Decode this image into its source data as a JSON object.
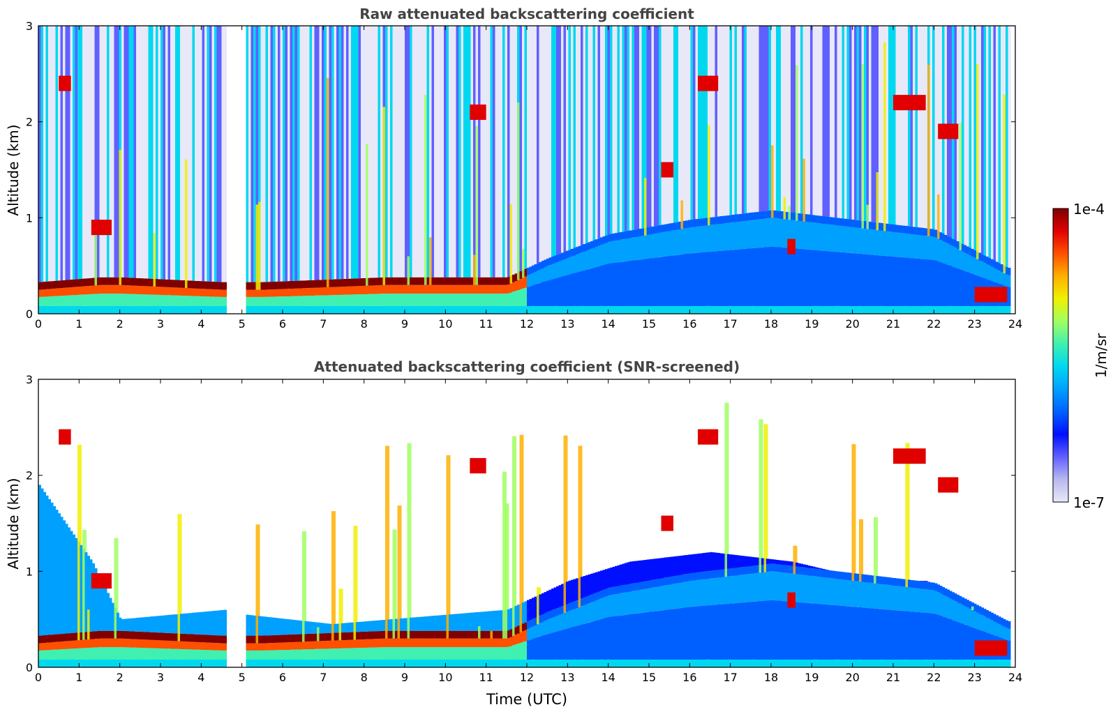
{
  "chart_data": [
    {
      "type": "heatmap",
      "title": "Raw attenuated backscattering coefficient",
      "xlabel": "",
      "ylabel": "Altitude (km)",
      "xlim": [
        0,
        24
      ],
      "ylim": [
        0,
        3
      ],
      "xticks": [
        "0",
        "1",
        "2",
        "3",
        "4",
        "5",
        "6",
        "7",
        "8",
        "9",
        "10",
        "11",
        "12",
        "13",
        "14",
        "15",
        "16",
        "17",
        "18",
        "19",
        "20",
        "21",
        "22",
        "23",
        "24"
      ],
      "yticks": [
        "0",
        "1",
        "2",
        "3"
      ],
      "data_gap_hours": [
        4.6,
        5.05
      ],
      "boundary_layer": [
        {
          "t": 0.0,
          "h": 0.25
        },
        {
          "t": 1.5,
          "h": 0.3
        },
        {
          "t": 2.0,
          "h": 0.3
        },
        {
          "t": 4.5,
          "h": 0.25
        },
        {
          "t": 5.5,
          "h": 0.25
        },
        {
          "t": 8.5,
          "h": 0.3
        },
        {
          "t": 11.5,
          "h": 0.3
        },
        {
          "t": 12.5,
          "h": 0.5
        },
        {
          "t": 14.0,
          "h": 0.75
        },
        {
          "t": 16.0,
          "h": 0.9
        },
        {
          "t": 18.0,
          "h": 1.0
        },
        {
          "t": 20.0,
          "h": 0.9
        },
        {
          "t": 22.0,
          "h": 0.8
        },
        {
          "t": 23.8,
          "h": 0.4
        }
      ],
      "cloud_layers": [
        {
          "t0": 0.5,
          "t1": 0.8,
          "alt": 2.4
        },
        {
          "t0": 1.3,
          "t1": 1.8,
          "alt": 0.9
        },
        {
          "t0": 10.6,
          "t1": 11.0,
          "alt": 2.1
        },
        {
          "t0": 15.3,
          "t1": 15.6,
          "alt": 1.5
        },
        {
          "t0": 16.2,
          "t1": 16.7,
          "alt": 2.4
        },
        {
          "t0": 18.4,
          "t1": 18.6,
          "alt": 0.7
        },
        {
          "t0": 21.0,
          "t1": 21.8,
          "alt": 2.2
        },
        {
          "t0": 22.1,
          "t1": 22.6,
          "alt": 1.9
        },
        {
          "t0": 23.0,
          "t1": 23.8,
          "alt": 0.2
        }
      ]
    },
    {
      "type": "heatmap",
      "title": "Attenuated backscattering coefficient (SNR-screened)",
      "xlabel": "Time (UTC)",
      "ylabel": "Altitude (km)",
      "xlim": [
        0,
        24
      ],
      "ylim": [
        0,
        3
      ],
      "xticks": [
        "0",
        "1",
        "2",
        "3",
        "4",
        "5",
        "6",
        "7",
        "8",
        "9",
        "10",
        "11",
        "12",
        "13",
        "14",
        "15",
        "16",
        "17",
        "18",
        "19",
        "20",
        "21",
        "22",
        "23",
        "24"
      ],
      "yticks": [
        "0",
        "1",
        "2",
        "3"
      ],
      "data_gap_hours": [
        4.6,
        5.05
      ],
      "valid_top": [
        {
          "t": 0.0,
          "h": 1.9
        },
        {
          "t": 1.3,
          "h": 1.1
        },
        {
          "t": 2.0,
          "h": 0.5
        },
        {
          "t": 4.6,
          "h": 0.6
        },
        {
          "t": 5.05,
          "h": 0.55
        },
        {
          "t": 7.2,
          "h": 0.45
        },
        {
          "t": 11.5,
          "h": 0.6
        },
        {
          "t": 13.0,
          "h": 0.9
        },
        {
          "t": 14.5,
          "h": 1.1
        },
        {
          "t": 16.5,
          "h": 1.2
        },
        {
          "t": 18.5,
          "h": 1.1
        },
        {
          "t": 20.5,
          "h": 0.9
        },
        {
          "t": 21.8,
          "h": 0.9
        },
        {
          "t": 23.8,
          "h": 0.4
        }
      ]
    }
  ],
  "colorbar": {
    "label": "1/m/sr",
    "max_label": "1e-4",
    "min_label": "1e-7",
    "min": 1e-07,
    "max": 0.0001,
    "scale": "log",
    "colors": [
      "#e8e8f8",
      "#b8b8f0",
      "#6060ff",
      "#0010ff",
      "#0060ff",
      "#00a0ff",
      "#00d8f0",
      "#40f0b0",
      "#a0ff60",
      "#f0f000",
      "#ffb000",
      "#ff5000",
      "#e00000",
      "#800000"
    ]
  }
}
